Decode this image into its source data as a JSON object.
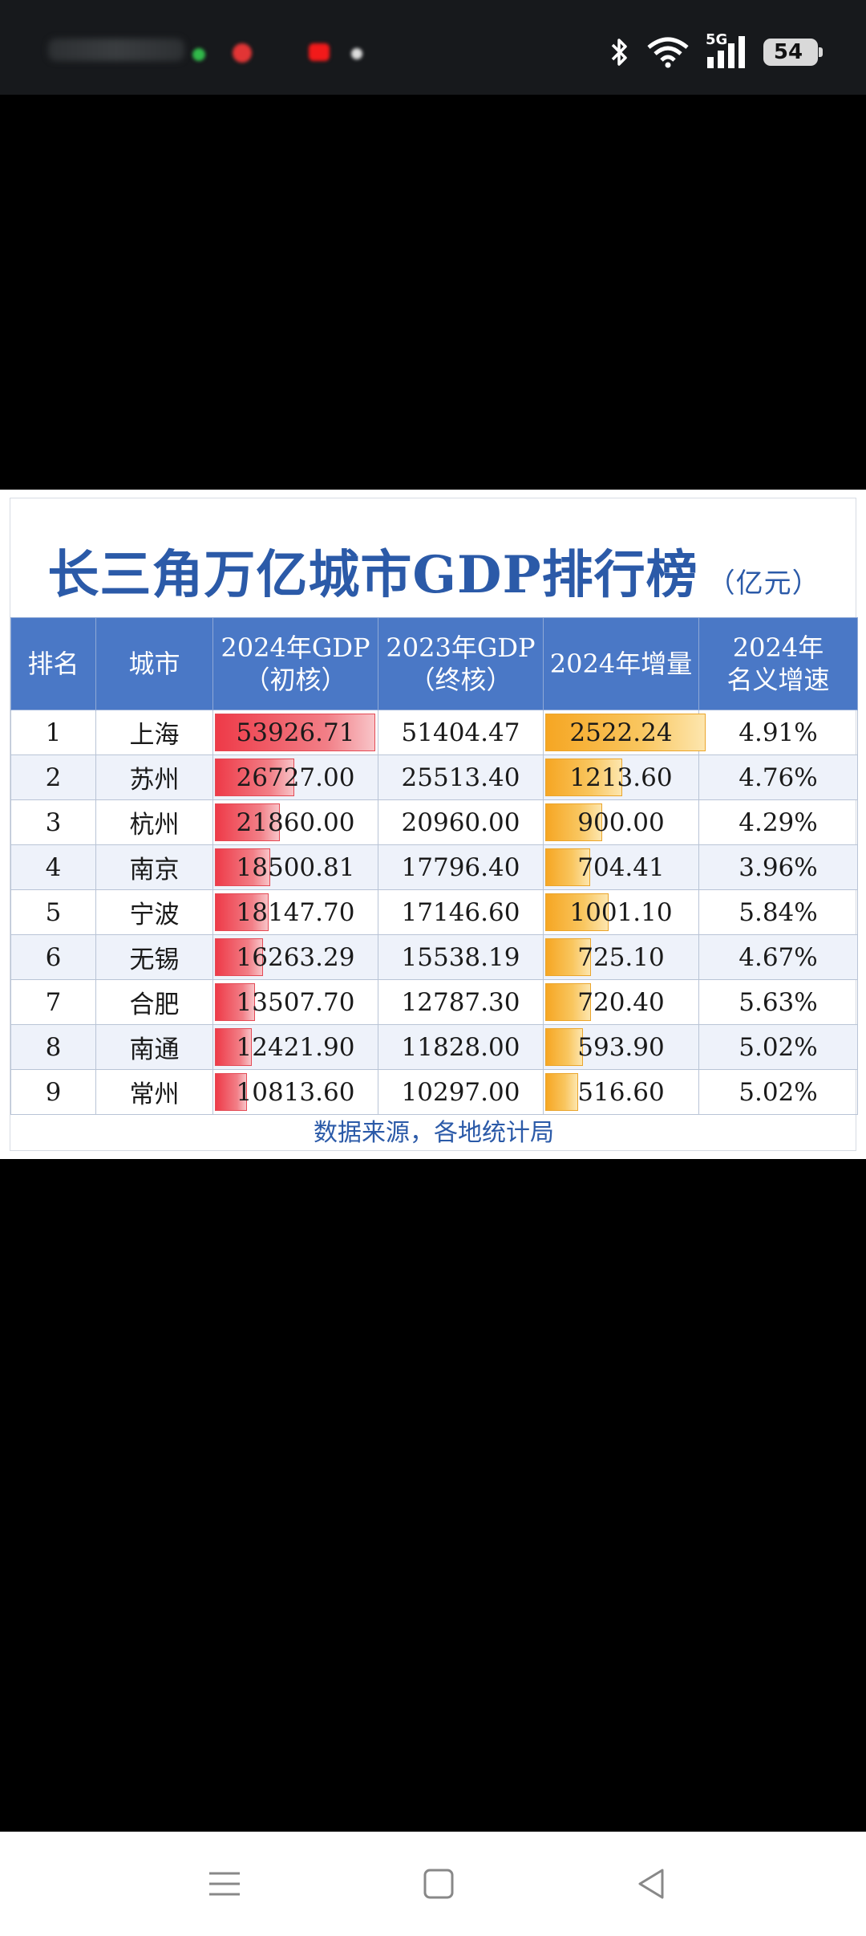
{
  "status_bar": {
    "network": "5G",
    "battery": "54"
  },
  "card": {
    "title": "长三角万亿城市GDP排行榜",
    "unit": "（亿元）",
    "headers": {
      "rank": "排名",
      "city": "城市",
      "gdp2024_line1": "2024年GDP",
      "gdp2024_line2": "（初核）",
      "gdp2023_line1": "2023年GDP",
      "gdp2023_line2": "（终核）",
      "increase": "2024年增量",
      "growth_line1": "2024年",
      "growth_line2": "名义增速"
    },
    "rows": [
      {
        "rank": "1",
        "city": "上海",
        "gdp2024": "53926.71",
        "gdp2023": "51404.47",
        "increase": "2522.24",
        "growth": "4.91%"
      },
      {
        "rank": "2",
        "city": "苏州",
        "gdp2024": "26727.00",
        "gdp2023": "25513.40",
        "increase": "1213.60",
        "growth": "4.76%"
      },
      {
        "rank": "3",
        "city": "杭州",
        "gdp2024": "21860.00",
        "gdp2023": "20960.00",
        "increase": "900.00",
        "growth": "4.29%"
      },
      {
        "rank": "4",
        "city": "南京",
        "gdp2024": "18500.81",
        "gdp2023": "17796.40",
        "increase": "704.41",
        "growth": "3.96%"
      },
      {
        "rank": "5",
        "city": "宁波",
        "gdp2024": "18147.70",
        "gdp2023": "17146.60",
        "increase": "1001.10",
        "growth": "5.84%"
      },
      {
        "rank": "6",
        "city": "无锡",
        "gdp2024": "16263.29",
        "gdp2023": "15538.19",
        "increase": "725.10",
        "growth": "4.67%"
      },
      {
        "rank": "7",
        "city": "合肥",
        "gdp2024": "13507.70",
        "gdp2023": "12787.30",
        "increase": "720.40",
        "growth": "5.63%"
      },
      {
        "rank": "8",
        "city": "南通",
        "gdp2024": "12421.90",
        "gdp2023": "11828.00",
        "increase": "593.90",
        "growth": "5.02%"
      },
      {
        "rank": "9",
        "city": "常州",
        "gdp2024": "10813.60",
        "gdp2023": "10297.00",
        "increase": "516.60",
        "growth": "5.02%"
      }
    ],
    "source": "数据来源，各地统计局"
  },
  "colors": {
    "header_bg": "#4a78c6",
    "title": "#2b5aa8",
    "gdp_bar": "#ee3a48",
    "increase_bar": "#f6a623"
  }
}
